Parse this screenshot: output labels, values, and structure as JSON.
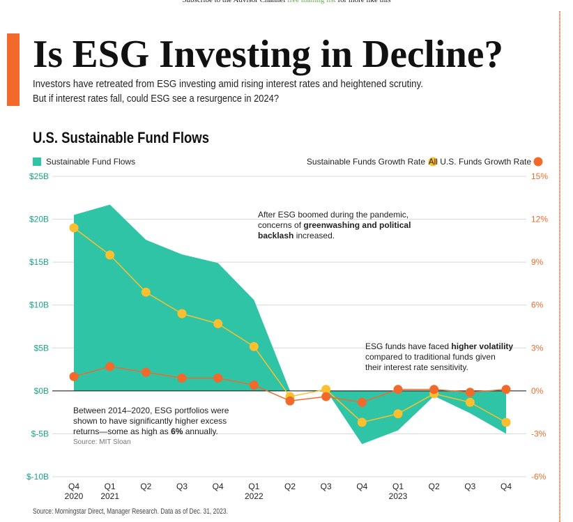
{
  "header": {
    "parts": [
      {
        "text": "Subscribe to the Advisor Channel ",
        "color": "#222222"
      },
      {
        "text": "free mailing list",
        "color": "#6aa84f"
      },
      {
        "text": " for more like this",
        "color": "#222222"
      }
    ]
  },
  "chart_data": {
    "type": "area-line",
    "title": "Is ESG Investing in Decline?",
    "subtitle": [
      "Investors have retreated from ESG investing amid rising interest rates and heightened scrutiny.",
      "But if interest rates fall, could ESG see a resurgence in 2024?"
    ],
    "chart_title": "U.S. Sustainable Fund Flows",
    "categories": [
      "Q4",
      "Q1",
      "Q2",
      "Q3",
      "Q4",
      "Q1",
      "Q2",
      "Q3",
      "Q4",
      "Q1",
      "Q2",
      "Q3",
      "Q4"
    ],
    "years": [
      "2020",
      "2021",
      null,
      null,
      null,
      "2022",
      null,
      null,
      null,
      "2023",
      null,
      null,
      null
    ],
    "series": [
      {
        "name": "Sustainable Fund Flows",
        "color": "#2ec4a5",
        "axis": "y",
        "kind": "area",
        "values": [
          20.5,
          21.7,
          17.6,
          15.9,
          14.9,
          10.6,
          0,
          0.1,
          -6.2,
          -4.6,
          -0.6,
          -2.6,
          -5.0
        ]
      },
      {
        "name": "Sustainable Funds Growth Rate",
        "color": "#fcbf2f",
        "axis": "y2",
        "kind": "line",
        "values": [
          11.4,
          9.5,
          6.9,
          5.4,
          4.7,
          3.1,
          -0.4,
          0.1,
          -2.2,
          -1.6,
          -0.2,
          -0.8,
          -2.2
        ]
      },
      {
        "name": "All U.S. Funds Growth Rate",
        "color": "#f26a2b",
        "axis": "y2",
        "kind": "line",
        "values": [
          1.0,
          1.7,
          1.3,
          0.9,
          0.9,
          0.4,
          -0.7,
          -0.4,
          -0.8,
          0.1,
          0.1,
          -0.1,
          0.1
        ]
      }
    ],
    "ylim": [
      -10,
      25
    ],
    "yticks": [
      {
        "value": -10,
        "label": "$-10B"
      },
      {
        "value": -5,
        "label": "$-5B"
      },
      {
        "value": 0,
        "label": "$0B"
      },
      {
        "value": 5,
        "label": "$5B"
      },
      {
        "value": 10,
        "label": "$10B"
      },
      {
        "value": 15,
        "label": "$15B"
      },
      {
        "value": 20,
        "label": "$20B"
      },
      {
        "value": 25,
        "label": "$25B"
      }
    ],
    "y2lim": [
      -6,
      15
    ],
    "y2ticks": [
      {
        "value": -6,
        "label": "-6%"
      },
      {
        "value": -3,
        "label": "-3%"
      },
      {
        "value": 0,
        "label": "0%"
      },
      {
        "value": 3,
        "label": "3%"
      },
      {
        "value": 6,
        "label": "6%"
      },
      {
        "value": 9,
        "label": "9%"
      },
      {
        "value": 12,
        "label": "12%"
      },
      {
        "value": 15,
        "label": "15%"
      }
    ],
    "grid": true,
    "annotations": [
      {
        "lines": [
          [
            {
              "text": "After ESG boomed during the pandemic,",
              "bold": false
            }
          ],
          [
            {
              "text": "concerns of ",
              "bold": false
            },
            {
              "text": "greenwashing and political",
              "bold": true
            }
          ],
          [
            {
              "text": "backlash",
              "bold": true
            },
            {
              "text": " increased.",
              "bold": false
            }
          ]
        ]
      },
      {
        "lines": [
          [
            {
              "text": "ESG funds have faced ",
              "bold": false
            },
            {
              "text": "higher volatility",
              "bold": true
            }
          ],
          [
            {
              "text": "compared to traditional funds given",
              "bold": false
            }
          ],
          [
            {
              "text": "their interest rate sensitivity.",
              "bold": false
            }
          ]
        ]
      },
      {
        "lines": [
          [
            {
              "text": "Between 2014–2020, ESG portfolios were",
              "bold": false
            }
          ],
          [
            {
              "text": "shown to have significantly higher excess",
              "bold": false
            }
          ],
          [
            {
              "text": "returns—some as high as ",
              "bold": false
            },
            {
              "text": "6%",
              "bold": true
            },
            {
              "text": " annually.",
              "bold": false
            }
          ]
        ],
        "note": "Source: MIT Sloan"
      }
    ],
    "source": "Source: Morningstar Direct, Manager Research. Data as of Dec. 31, 2023."
  }
}
